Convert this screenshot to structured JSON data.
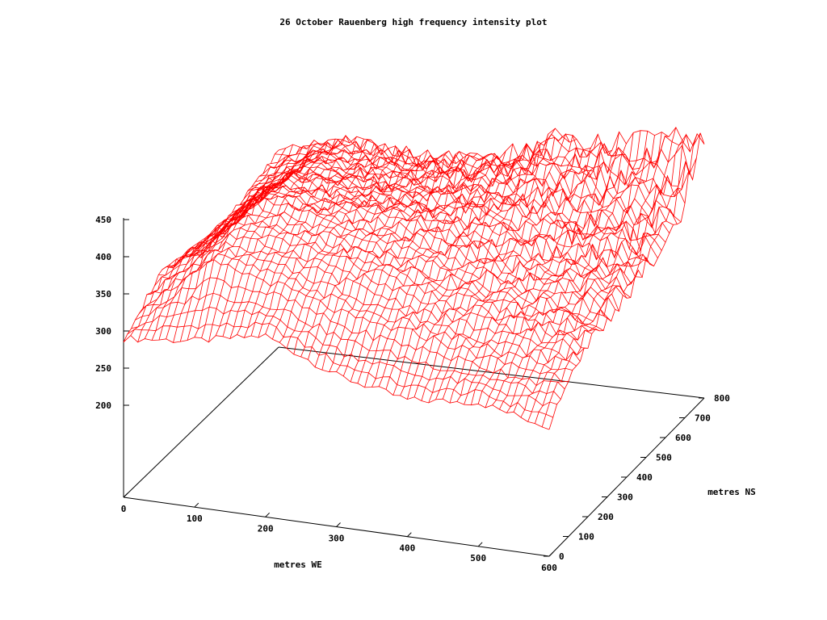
{
  "chart_data": {
    "type": "surface-3d-wireframe",
    "title": "26 October Rauenberg high frequency intensity plot",
    "xlabel": "metres WE",
    "ylabel": "metres NS",
    "zlabel": "",
    "xlim": [
      0,
      600
    ],
    "ylim": [
      0,
      800
    ],
    "zlim": [
      200,
      450
    ],
    "x_ticks": [
      "0",
      "100",
      "200",
      "300",
      "400",
      "500",
      "600"
    ],
    "y_ticks": [
      "0",
      "100",
      "200",
      "300",
      "400",
      "500",
      "600",
      "700",
      "800"
    ],
    "z_ticks": [
      "200",
      "250",
      "300",
      "350",
      "400",
      "450"
    ],
    "surface_color": "#ff0000",
    "grid": false,
    "approx_profile": {
      "description_y_positions": [
        0,
        100,
        200,
        300,
        400,
        500,
        600,
        700,
        800
      ],
      "x_samples": [
        0,
        100,
        200,
        300,
        400,
        500,
        600
      ],
      "z_values": [
        [
          290,
          300,
          320,
          280,
          260,
          270,
          250
        ],
        [
          310,
          380,
          360,
          330,
          320,
          300,
          290
        ],
        [
          330,
          400,
          390,
          370,
          340,
          330,
          310
        ],
        [
          320,
          420,
          400,
          380,
          360,
          340,
          320
        ],
        [
          300,
          410,
          400,
          390,
          370,
          350,
          330
        ],
        [
          310,
          400,
          390,
          385,
          380,
          360,
          340
        ],
        [
          320,
          390,
          380,
          380,
          390,
          370,
          350
        ],
        [
          330,
          380,
          370,
          380,
          400,
          390,
          380
        ],
        [
          340,
          370,
          360,
          370,
          410,
          420,
          440
        ]
      ]
    }
  }
}
